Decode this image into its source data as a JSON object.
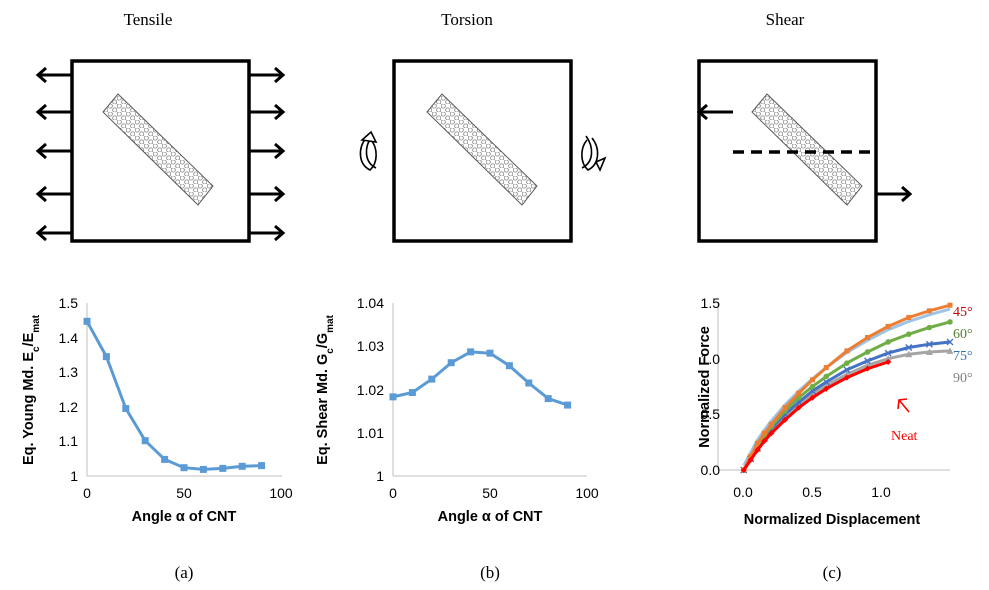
{
  "schematics": {
    "tensile_title": "Tensile",
    "torsion_title": "Torsion",
    "shear_title": "Shear"
  },
  "panel_labels": [
    "(a)",
    "(b)",
    "(c)"
  ],
  "colors": {
    "series_a": "#5b9bd5",
    "series_b": "#5b9bd5",
    "angle_45": "#ed7d31",
    "angle_60": "#70ad47",
    "angle_75": "#4472c4",
    "angle_90": "#a5a5a5",
    "neat": "#ff0000",
    "light_blue": "#9dc3e6",
    "axis": "#bfbfbf"
  },
  "chart_data": [
    {
      "type": "line",
      "xlabel": "Angle α of CNT",
      "ylabel_main": "Eq. Young Md. E",
      "ylabel_sub1": "c",
      "ylabel_mid": "/E",
      "ylabel_sub2": "mat",
      "xlim": [
        0,
        100
      ],
      "ylim": [
        1,
        1.5
      ],
      "xticks": [
        "0",
        "50",
        "100"
      ],
      "yticks": [
        "1",
        "1.1",
        "1.2",
        "1.3",
        "1.4",
        "1.5"
      ],
      "series": [
        {
          "x": [
            0,
            10,
            20,
            30,
            40,
            50,
            60,
            70,
            80,
            90
          ],
          "y": [
            1.447,
            1.345,
            1.195,
            1.102,
            1.048,
            1.024,
            1.019,
            1.022,
            1.028,
            1.03
          ]
        }
      ]
    },
    {
      "type": "line",
      "xlabel": "Angle α of CNT",
      "ylabel_main": "Eq. Shear Md. G",
      "ylabel_sub1": "c",
      "ylabel_mid": "/G",
      "ylabel_sub2": "mat",
      "xlim": [
        0,
        100
      ],
      "ylim": [
        1,
        1.04
      ],
      "xticks": [
        "0",
        "50",
        "100"
      ],
      "yticks": [
        "1",
        "1.01",
        "1.02",
        "1.03",
        "1.04"
      ],
      "series": [
        {
          "x": [
            0,
            10,
            20,
            30,
            40,
            50,
            60,
            70,
            80,
            90
          ],
          "y": [
            1.0183,
            1.0193,
            1.0224,
            1.0262,
            1.0287,
            1.0284,
            1.0255,
            1.0215,
            1.0179,
            1.0164
          ]
        }
      ]
    },
    {
      "type": "line",
      "xlabel": "Normalized Displacement",
      "ylabel": "Normalized Force",
      "xlim": [
        -0.1,
        1.5
      ],
      "ylim": [
        0,
        1.5
      ],
      "xticks": [
        "0.0",
        "0.5",
        "1.0"
      ],
      "yticks": [
        "0.0",
        "0.5",
        "1.0",
        "1.5"
      ],
      "series": [
        {
          "name": "45°",
          "x": [
            0,
            0.05,
            0.1,
            0.15,
            0.2,
            0.3,
            0.4,
            0.5,
            0.6,
            0.75,
            0.9,
            1.05,
            1.2,
            1.35,
            1.5
          ],
          "y": [
            0,
            0.12,
            0.24,
            0.33,
            0.41,
            0.56,
            0.69,
            0.81,
            0.92,
            1.07,
            1.19,
            1.29,
            1.37,
            1.43,
            1.48
          ]
        },
        {
          "name": "60°",
          "x": [
            0,
            0.05,
            0.1,
            0.15,
            0.2,
            0.3,
            0.4,
            0.5,
            0.6,
            0.75,
            0.9,
            1.05,
            1.2,
            1.35,
            1.5
          ],
          "y": [
            0,
            0.11,
            0.22,
            0.31,
            0.39,
            0.53,
            0.65,
            0.75,
            0.84,
            0.96,
            1.06,
            1.15,
            1.22,
            1.28,
            1.33
          ]
        },
        {
          "name": "75°",
          "x": [
            0,
            0.05,
            0.1,
            0.15,
            0.2,
            0.3,
            0.4,
            0.5,
            0.6,
            0.75,
            0.9,
            1.05,
            1.2,
            1.35,
            1.5
          ],
          "y": [
            0,
            0.1,
            0.2,
            0.29,
            0.37,
            0.5,
            0.61,
            0.71,
            0.79,
            0.9,
            0.98,
            1.05,
            1.1,
            1.13,
            1.15
          ]
        },
        {
          "name": "90°",
          "x": [
            0,
            0.05,
            0.1,
            0.15,
            0.2,
            0.3,
            0.4,
            0.5,
            0.6,
            0.75,
            0.9,
            1.05,
            1.2,
            1.35,
            1.5
          ],
          "y": [
            0,
            0.1,
            0.19,
            0.28,
            0.35,
            0.48,
            0.59,
            0.68,
            0.76,
            0.86,
            0.94,
            1.0,
            1.04,
            1.06,
            1.07
          ]
        },
        {
          "name": "Neat",
          "x": [
            0,
            0.05,
            0.1,
            0.15,
            0.2,
            0.3,
            0.4,
            0.5,
            0.6,
            0.75,
            0.9,
            1.05
          ],
          "y": [
            0,
            0.09,
            0.18,
            0.26,
            0.33,
            0.45,
            0.56,
            0.65,
            0.73,
            0.83,
            0.91,
            0.97
          ]
        }
      ],
      "annotations": {
        "neat_label": "Neat"
      }
    }
  ]
}
